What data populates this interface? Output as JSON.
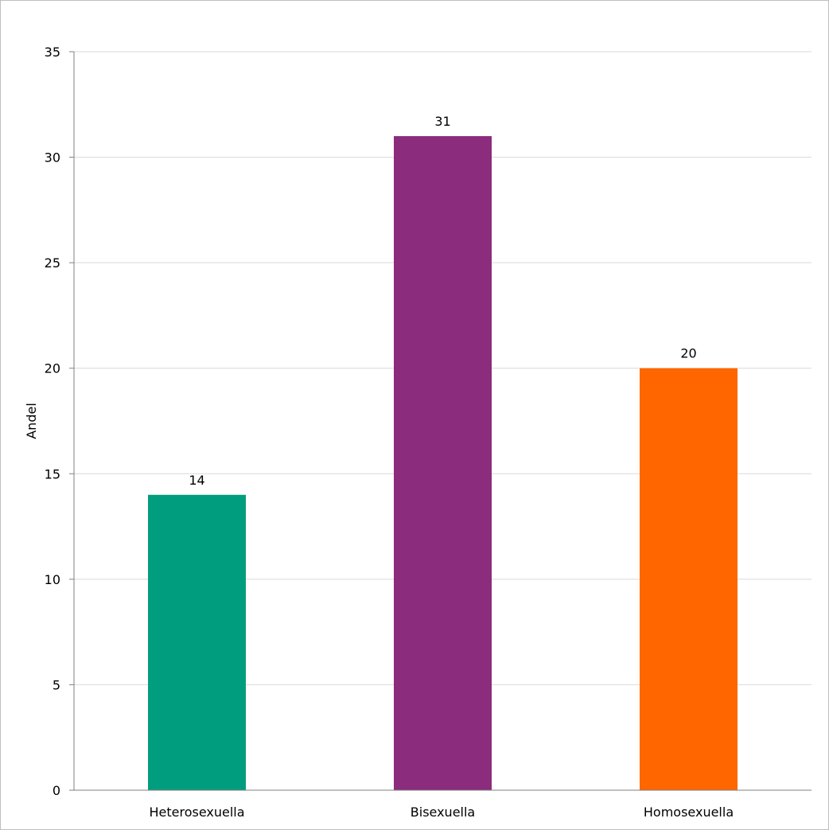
{
  "chart_data": {
    "type": "bar",
    "title": "",
    "xlabel": "",
    "ylabel": "Andel",
    "categories": [
      "Heterosexuella",
      "Bisexuella",
      "Homosexuella"
    ],
    "values": [
      14,
      31,
      20
    ],
    "data_labels": [
      "14",
      "31",
      "20"
    ],
    "colors": [
      "#009e7e",
      "#8b2c7c",
      "#ff6600"
    ],
    "ylim": [
      0,
      35
    ],
    "yticks": [
      0,
      5,
      10,
      15,
      20,
      25,
      30,
      35
    ],
    "grid": true,
    "gridline_color": "#d9d9d9",
    "axis_color": "#808080",
    "legend": "none"
  }
}
